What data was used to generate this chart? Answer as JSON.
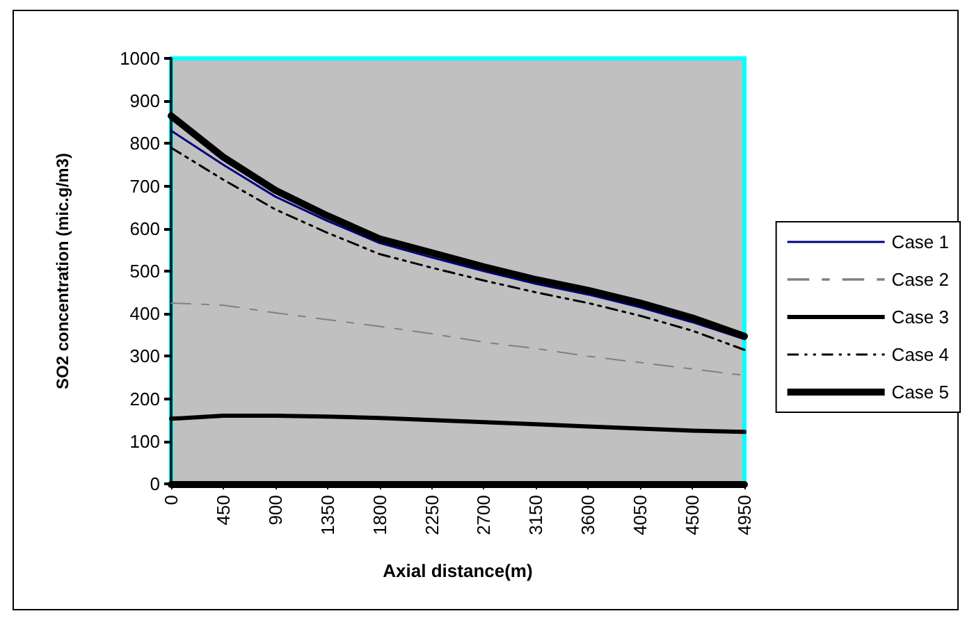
{
  "chart_data": {
    "type": "line",
    "xlabel": "Axial distance(m)",
    "ylabel": "SO2 concentration (mic.g/m3)",
    "x": [
      0,
      450,
      900,
      1350,
      1800,
      2250,
      2700,
      3150,
      3600,
      4050,
      4500,
      4950
    ],
    "xlim": [
      0,
      4950
    ],
    "xticks": [
      0,
      450,
      900,
      1350,
      1800,
      2250,
      2700,
      3150,
      3600,
      4050,
      4500,
      4950
    ],
    "ylim": [
      0,
      1000
    ],
    "yticks": [
      0,
      100,
      200,
      300,
      400,
      500,
      600,
      700,
      800,
      900,
      1000
    ],
    "grid": false,
    "legend": "right",
    "marker": "none",
    "series": [
      {
        "name": "Case 1",
        "color": "#000080",
        "line_style": "solid",
        "values": [
          830,
          750,
          675,
          618,
          566,
          532,
          500,
          470,
          445,
          415,
          380,
          340
        ]
      },
      {
        "name": "Case 2",
        "color": "#808080",
        "line_style": "dashed",
        "values": [
          425,
          420,
          402,
          386,
          370,
          353,
          333,
          318,
          300,
          285,
          270,
          255
        ]
      },
      {
        "name": "Case 3",
        "color": "#000000",
        "line_style": "solid",
        "values": [
          153,
          160,
          160,
          158,
          155,
          150,
          145,
          140,
          135,
          130,
          125,
          122
        ]
      },
      {
        "name": "Case 4",
        "color": "#000000",
        "line_style": "dotted",
        "values": [
          790,
          715,
          645,
          590,
          540,
          508,
          478,
          450,
          425,
          395,
          360,
          315
        ]
      },
      {
        "name": "Case 5",
        "color": "#000000",
        "line_style": "solid",
        "values": [
          865,
          768,
          690,
          630,
          576,
          543,
          510,
          480,
          455,
          425,
          390,
          347
        ]
      }
    ]
  }
}
